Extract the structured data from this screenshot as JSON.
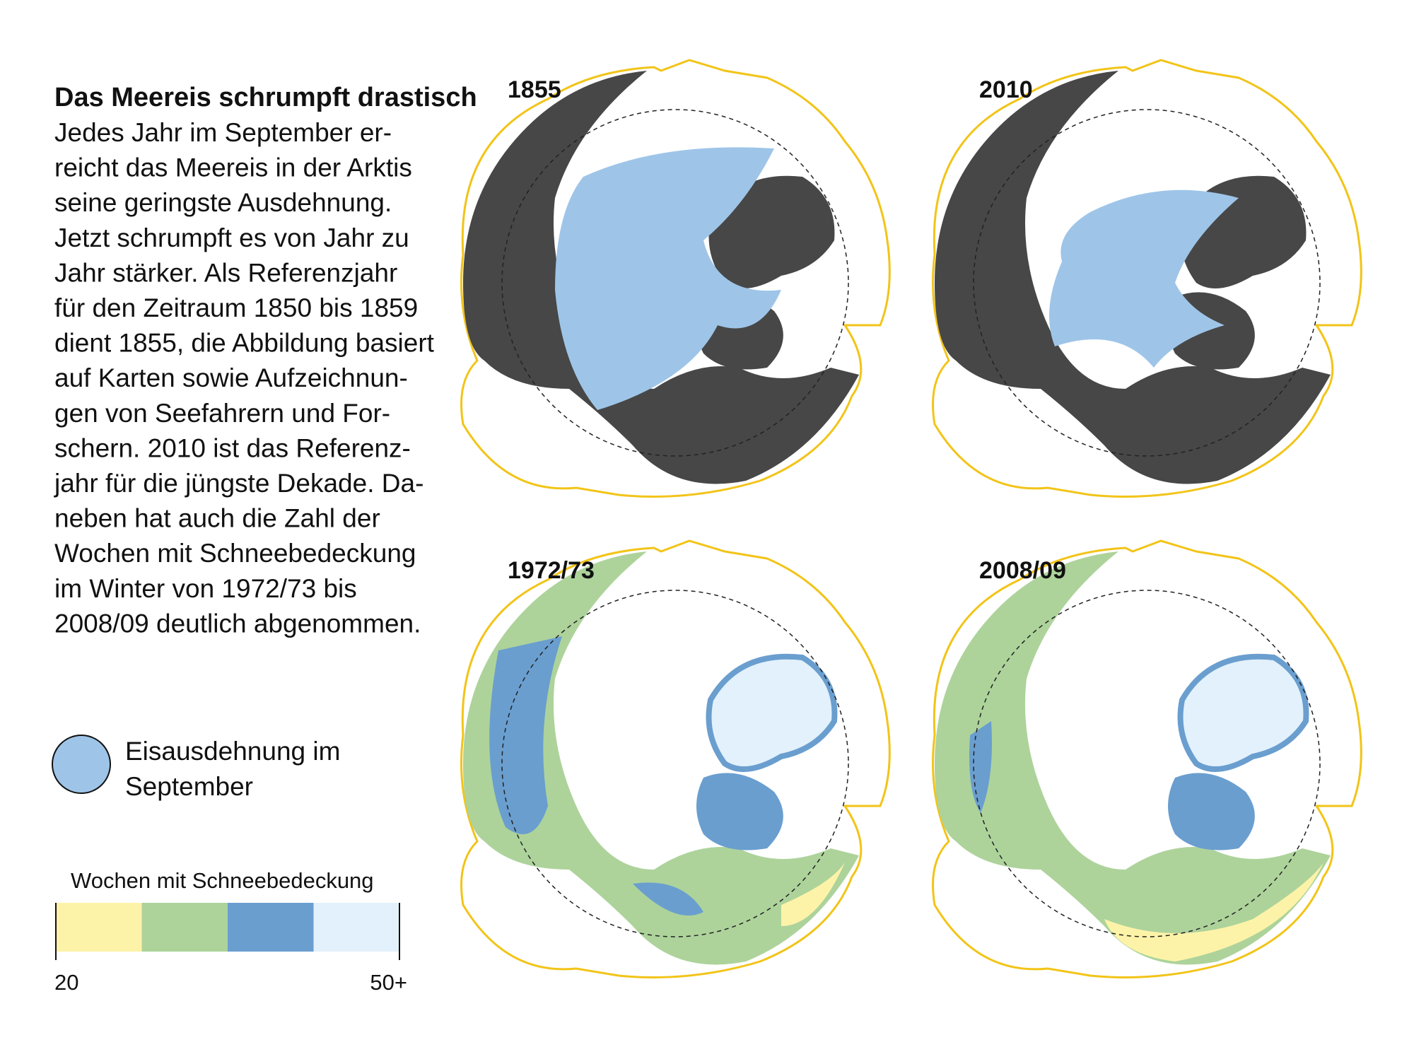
{
  "header": {
    "title": "Das Meereis schrumpft drastisch"
  },
  "body": {
    "lines": [
      "Jedes Jahr im September er-",
      "reicht das Meereis in der Arktis",
      "seine geringste Ausdehnung.",
      "Jetzt schrumpft es von Jahr zu",
      "Jahr stärker. Als Referenzjahr",
      "für den Zeitraum 1850 bis 1859",
      "dient 1855, die Abbildung basiert",
      "auf Karten sowie Aufzeichnun-",
      "gen von Seefahrern und For-",
      "schern. 2010 ist das Referenz-",
      "jahr für die jüngste Dekade. Da-",
      "neben hat auch die Zahl der",
      "Wochen mit Schneebedeckung",
      "im Winter von 1972/73 bis",
      "2008/09 deutlich abgenommen."
    ]
  },
  "maps": [
    {
      "label": "1855"
    },
    {
      "label": "2010"
    },
    {
      "label": "1972/73"
    },
    {
      "label": "2008/09"
    }
  ],
  "ice_legend": {
    "label": "Eisausdehnung im September",
    "color": "#9ec5e8"
  },
  "snow_legend": {
    "title": "Wochen mit Schneebedeckung",
    "colors": [
      "#fdf3a8",
      "#add39b",
      "#6a9ecf",
      "#e2f1fb"
    ],
    "min_label": "20",
    "max_label": "50+"
  }
}
